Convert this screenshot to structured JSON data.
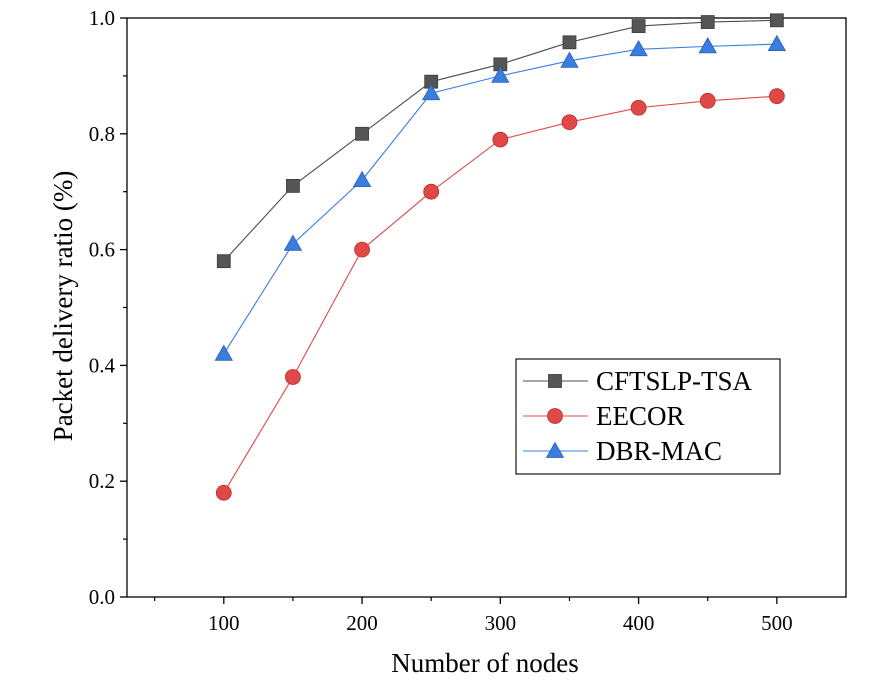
{
  "chart_data": {
    "type": "line",
    "title": "",
    "xlabel": "Number of nodes",
    "ylabel": "Packet delivery ratio (%)",
    "xlim": [
      30,
      550
    ],
    "ylim": [
      0.0,
      1.0
    ],
    "x_ticks": [
      100,
      200,
      300,
      400,
      500
    ],
    "y_ticks": [
      0.0,
      0.2,
      0.4,
      0.6,
      0.8,
      1.0
    ],
    "x_tick_labels": [
      "100",
      "200",
      "300",
      "400",
      "500"
    ],
    "y_tick_labels": [
      "0.0",
      "0.2",
      "0.4",
      "0.6",
      "0.8",
      "1.0"
    ],
    "grid": false,
    "legend_position": "center-right",
    "x": [
      100,
      150,
      200,
      250,
      300,
      350,
      400,
      450,
      500
    ],
    "series": [
      {
        "name": "CFTSLP-TSA",
        "marker": "square",
        "color": "#555555",
        "line_color": "#4d4d4d",
        "values": [
          0.58,
          0.71,
          0.8,
          0.89,
          0.92,
          0.958,
          0.986,
          0.993,
          0.996
        ]
      },
      {
        "name": "EECOR",
        "marker": "circle",
        "color": "#e04848",
        "line_color": "#e04848",
        "values": [
          0.18,
          0.38,
          0.6,
          0.7,
          0.79,
          0.82,
          0.845,
          0.857,
          0.865
        ]
      },
      {
        "name": "DBR-MAC",
        "marker": "triangle",
        "color": "#3a7de0",
        "line_color": "#3a7de0",
        "values": [
          0.42,
          0.61,
          0.72,
          0.87,
          0.9,
          0.926,
          0.946,
          0.951,
          0.955
        ]
      }
    ]
  }
}
